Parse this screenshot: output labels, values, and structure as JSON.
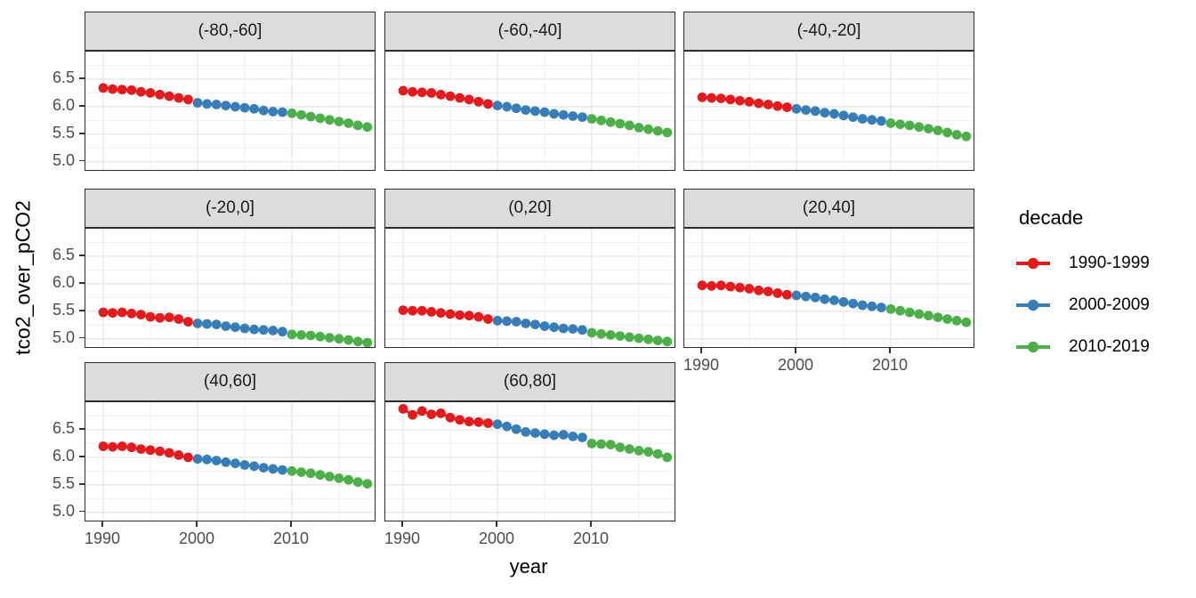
{
  "chart_data": {
    "type": "scatter",
    "title": "",
    "xlabel": "year",
    "ylabel": "tco2_over_pCO2",
    "x_ticks": [
      1990,
      2000,
      2010
    ],
    "x_minor_ticks": [
      1995,
      2005,
      2015
    ],
    "y_tick_labels": [
      "6.5",
      "6.0",
      "5.5",
      "5.0"
    ],
    "y_ticks": [
      6.5,
      6.0,
      5.5,
      5.0
    ],
    "y_minor_ticks": [
      6.75,
      6.25,
      5.75,
      5.25
    ],
    "x_range": [
      1988.1,
      2018.7
    ],
    "y_range": [
      4.85,
      7.0
    ],
    "grid": true,
    "facet_variable_bins": [
      "(-80,-60]",
      "(-60,-40]",
      "(-40,-20]",
      "(-20,0]",
      "(0,20]",
      "(20,40]",
      "(40,60]",
      "(60,80]"
    ],
    "years": [
      1990,
      1991,
      1992,
      1993,
      1994,
      1995,
      1996,
      1997,
      1998,
      1999,
      2000,
      2001,
      2002,
      2003,
      2004,
      2005,
      2006,
      2007,
      2008,
      2009,
      2010,
      2011,
      2012,
      2013,
      2014,
      2015,
      2016,
      2017,
      2018
    ],
    "facets": [
      {
        "label": "(-80,-60]",
        "values": [
          6.34,
          6.32,
          6.31,
          6.3,
          6.27,
          6.25,
          6.22,
          6.19,
          6.16,
          6.13,
          6.07,
          6.05,
          6.04,
          6.02,
          6.0,
          5.98,
          5.96,
          5.93,
          5.91,
          5.9,
          5.88,
          5.85,
          5.82,
          5.79,
          5.76,
          5.73,
          5.7,
          5.66,
          5.63
        ]
      },
      {
        "label": "(-60,-40]",
        "values": [
          6.29,
          6.27,
          6.26,
          6.25,
          6.22,
          6.19,
          6.16,
          6.13,
          6.09,
          6.05,
          6.02,
          6.0,
          5.97,
          5.94,
          5.92,
          5.9,
          5.87,
          5.85,
          5.83,
          5.81,
          5.78,
          5.75,
          5.72,
          5.69,
          5.66,
          5.62,
          5.59,
          5.56,
          5.53
        ]
      },
      {
        "label": "(-40,-20]",
        "values": [
          6.17,
          6.16,
          6.15,
          6.13,
          6.11,
          6.09,
          6.06,
          6.04,
          6.01,
          5.99,
          5.96,
          5.94,
          5.92,
          5.89,
          5.87,
          5.84,
          5.81,
          5.78,
          5.76,
          5.74,
          5.7,
          5.68,
          5.66,
          5.63,
          5.6,
          5.57,
          5.53,
          5.49,
          5.46
        ]
      },
      {
        "label": "(-20,0]",
        "values": [
          5.48,
          5.47,
          5.48,
          5.46,
          5.44,
          5.4,
          5.38,
          5.39,
          5.36,
          5.31,
          5.28,
          5.27,
          5.26,
          5.23,
          5.21,
          5.19,
          5.17,
          5.16,
          5.15,
          5.13,
          5.08,
          5.07,
          5.06,
          5.04,
          5.02,
          5.0,
          4.98,
          4.95,
          4.93
        ]
      },
      {
        "label": "(0,20]",
        "values": [
          5.52,
          5.51,
          5.51,
          5.49,
          5.47,
          5.45,
          5.43,
          5.42,
          5.4,
          5.36,
          5.33,
          5.32,
          5.31,
          5.28,
          5.26,
          5.23,
          5.21,
          5.19,
          5.18,
          5.16,
          5.11,
          5.09,
          5.07,
          5.05,
          5.03,
          5.01,
          4.99,
          4.97,
          4.95
        ]
      },
      {
        "label": "(20,40]",
        "values": [
          5.97,
          5.96,
          5.97,
          5.95,
          5.93,
          5.91,
          5.88,
          5.86,
          5.83,
          5.8,
          5.79,
          5.77,
          5.75,
          5.72,
          5.7,
          5.67,
          5.64,
          5.61,
          5.59,
          5.57,
          5.54,
          5.51,
          5.48,
          5.45,
          5.42,
          5.39,
          5.36,
          5.33,
          5.3
        ]
      },
      {
        "label": "(40,60]",
        "values": [
          6.2,
          6.19,
          6.2,
          6.18,
          6.15,
          6.13,
          6.11,
          6.08,
          6.04,
          6.0,
          5.97,
          5.96,
          5.94,
          5.91,
          5.89,
          5.86,
          5.84,
          5.81,
          5.79,
          5.77,
          5.75,
          5.73,
          5.71,
          5.68,
          5.65,
          5.62,
          5.59,
          5.55,
          5.52
        ]
      },
      {
        "label": "(60,80]",
        "values": [
          6.88,
          6.77,
          6.84,
          6.78,
          6.8,
          6.72,
          6.68,
          6.65,
          6.64,
          6.62,
          6.6,
          6.56,
          6.51,
          6.46,
          6.44,
          6.42,
          6.4,
          6.41,
          6.38,
          6.36,
          6.25,
          6.24,
          6.23,
          6.18,
          6.15,
          6.12,
          6.1,
          6.06,
          6.0
        ]
      }
    ],
    "legend": {
      "title": "decade",
      "position": "right",
      "entries": [
        {
          "label": "1990-1999",
          "color": "#E41A1C"
        },
        {
          "label": "2000-2009",
          "color": "#377EB8"
        },
        {
          "label": "2010-2019",
          "color": "#4DAF4A"
        }
      ]
    },
    "style_colors": {
      "decade_red": "#E41A1C",
      "decade_blue": "#377EB8",
      "decade_green": "#4DAF4A",
      "strip_background": "#dcdcdc",
      "panel_border": "#2d2d2d",
      "grid_major": "#e4e4e4",
      "grid_minor": "#efefef",
      "tick_text": "#4d4d4d"
    }
  }
}
